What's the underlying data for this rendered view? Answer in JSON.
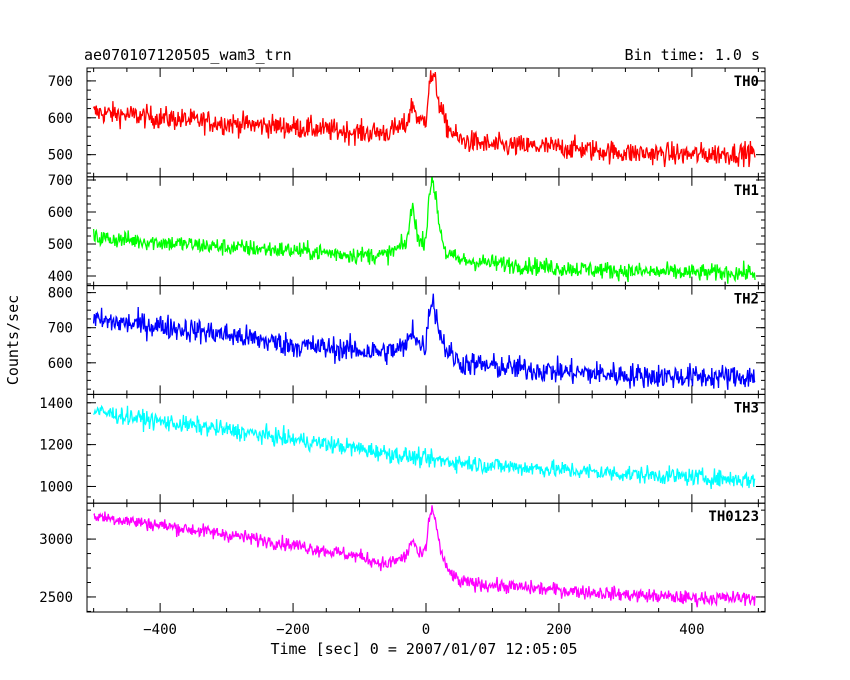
{
  "plot": {
    "title": "ae070107120505_wam3_trn",
    "bin_time": "Bin time: 1.0 s",
    "ylabel": "Counts/sec",
    "xlabel": "Time [sec] 0 = 2007/01/07 12:05:05"
  },
  "chart_data": {
    "type": "line",
    "xlabel": "Time [sec] 0 = 2007/01/07 12:05:05",
    "ylabel": "Counts/sec",
    "xlim": [
      -510,
      510
    ],
    "xticks": [
      -400,
      -200,
      0,
      200,
      400
    ],
    "bin_time_s": 1.0,
    "grid": false,
    "series": [
      {
        "name": "TH0",
        "color": "#ff0000",
        "ylim": [
          440,
          735
        ],
        "yticks": [
          500,
          600,
          700
        ],
        "noise": 28,
        "x": [
          -500,
          -400,
          -300,
          -200,
          -100,
          -60,
          -30,
          -20,
          -10,
          0,
          5,
          10,
          15,
          20,
          30,
          50,
          100,
          200,
          300,
          400,
          495
        ],
        "y": [
          615,
          600,
          585,
          575,
          560,
          560,
          580,
          640,
          585,
          600,
          700,
          710,
          690,
          640,
          580,
          540,
          525,
          520,
          505,
          500,
          505
        ]
      },
      {
        "name": "TH1",
        "color": "#00ff00",
        "ylim": [
          370,
          710
        ],
        "yticks": [
          400,
          500,
          600,
          700
        ],
        "noise": 25,
        "x": [
          -500,
          -400,
          -300,
          -200,
          -100,
          -60,
          -30,
          -20,
          -10,
          0,
          5,
          10,
          15,
          20,
          30,
          50,
          100,
          200,
          300,
          400,
          495
        ],
        "y": [
          520,
          505,
          490,
          480,
          465,
          465,
          500,
          620,
          500,
          520,
          670,
          690,
          650,
          560,
          470,
          450,
          440,
          425,
          415,
          410,
          410
        ]
      },
      {
        "name": "TH2",
        "color": "#0000ff",
        "ylim": [
          510,
          820
        ],
        "yticks": [
          600,
          700,
          800
        ],
        "noise": 32,
        "x": [
          -500,
          -400,
          -300,
          -200,
          -100,
          -60,
          -30,
          -20,
          -10,
          0,
          5,
          10,
          15,
          20,
          30,
          50,
          100,
          200,
          300,
          400,
          495
        ],
        "y": [
          720,
          705,
          680,
          650,
          635,
          630,
          645,
          700,
          650,
          650,
          760,
          780,
          740,
          690,
          640,
          600,
          590,
          575,
          565,
          560,
          560
        ]
      },
      {
        "name": "TH3",
        "color": "#00ffff",
        "ylim": [
          920,
          1440
        ],
        "yticks": [
          1000,
          1200,
          1400
        ],
        "noise": 38,
        "x": [
          -500,
          -400,
          -300,
          -200,
          -100,
          0,
          100,
          200,
          300,
          400,
          495
        ],
        "y": [
          1360,
          1310,
          1270,
          1225,
          1180,
          1130,
          1100,
          1080,
          1060,
          1045,
          1030
        ]
      },
      {
        "name": "TH0123",
        "color": "#ff00ff",
        "ylim": [
          2370,
          3310
        ],
        "yticks": [
          2500,
          3000
        ],
        "noise": 55,
        "x": [
          -500,
          -400,
          -300,
          -200,
          -100,
          -60,
          -30,
          -20,
          -10,
          0,
          5,
          10,
          15,
          20,
          30,
          50,
          100,
          200,
          300,
          400,
          495
        ],
        "y": [
          3200,
          3120,
          3040,
          2950,
          2850,
          2780,
          2850,
          3000,
          2850,
          2900,
          3200,
          3250,
          3150,
          2950,
          2750,
          2630,
          2600,
          2560,
          2520,
          2490,
          2490
        ]
      }
    ]
  }
}
